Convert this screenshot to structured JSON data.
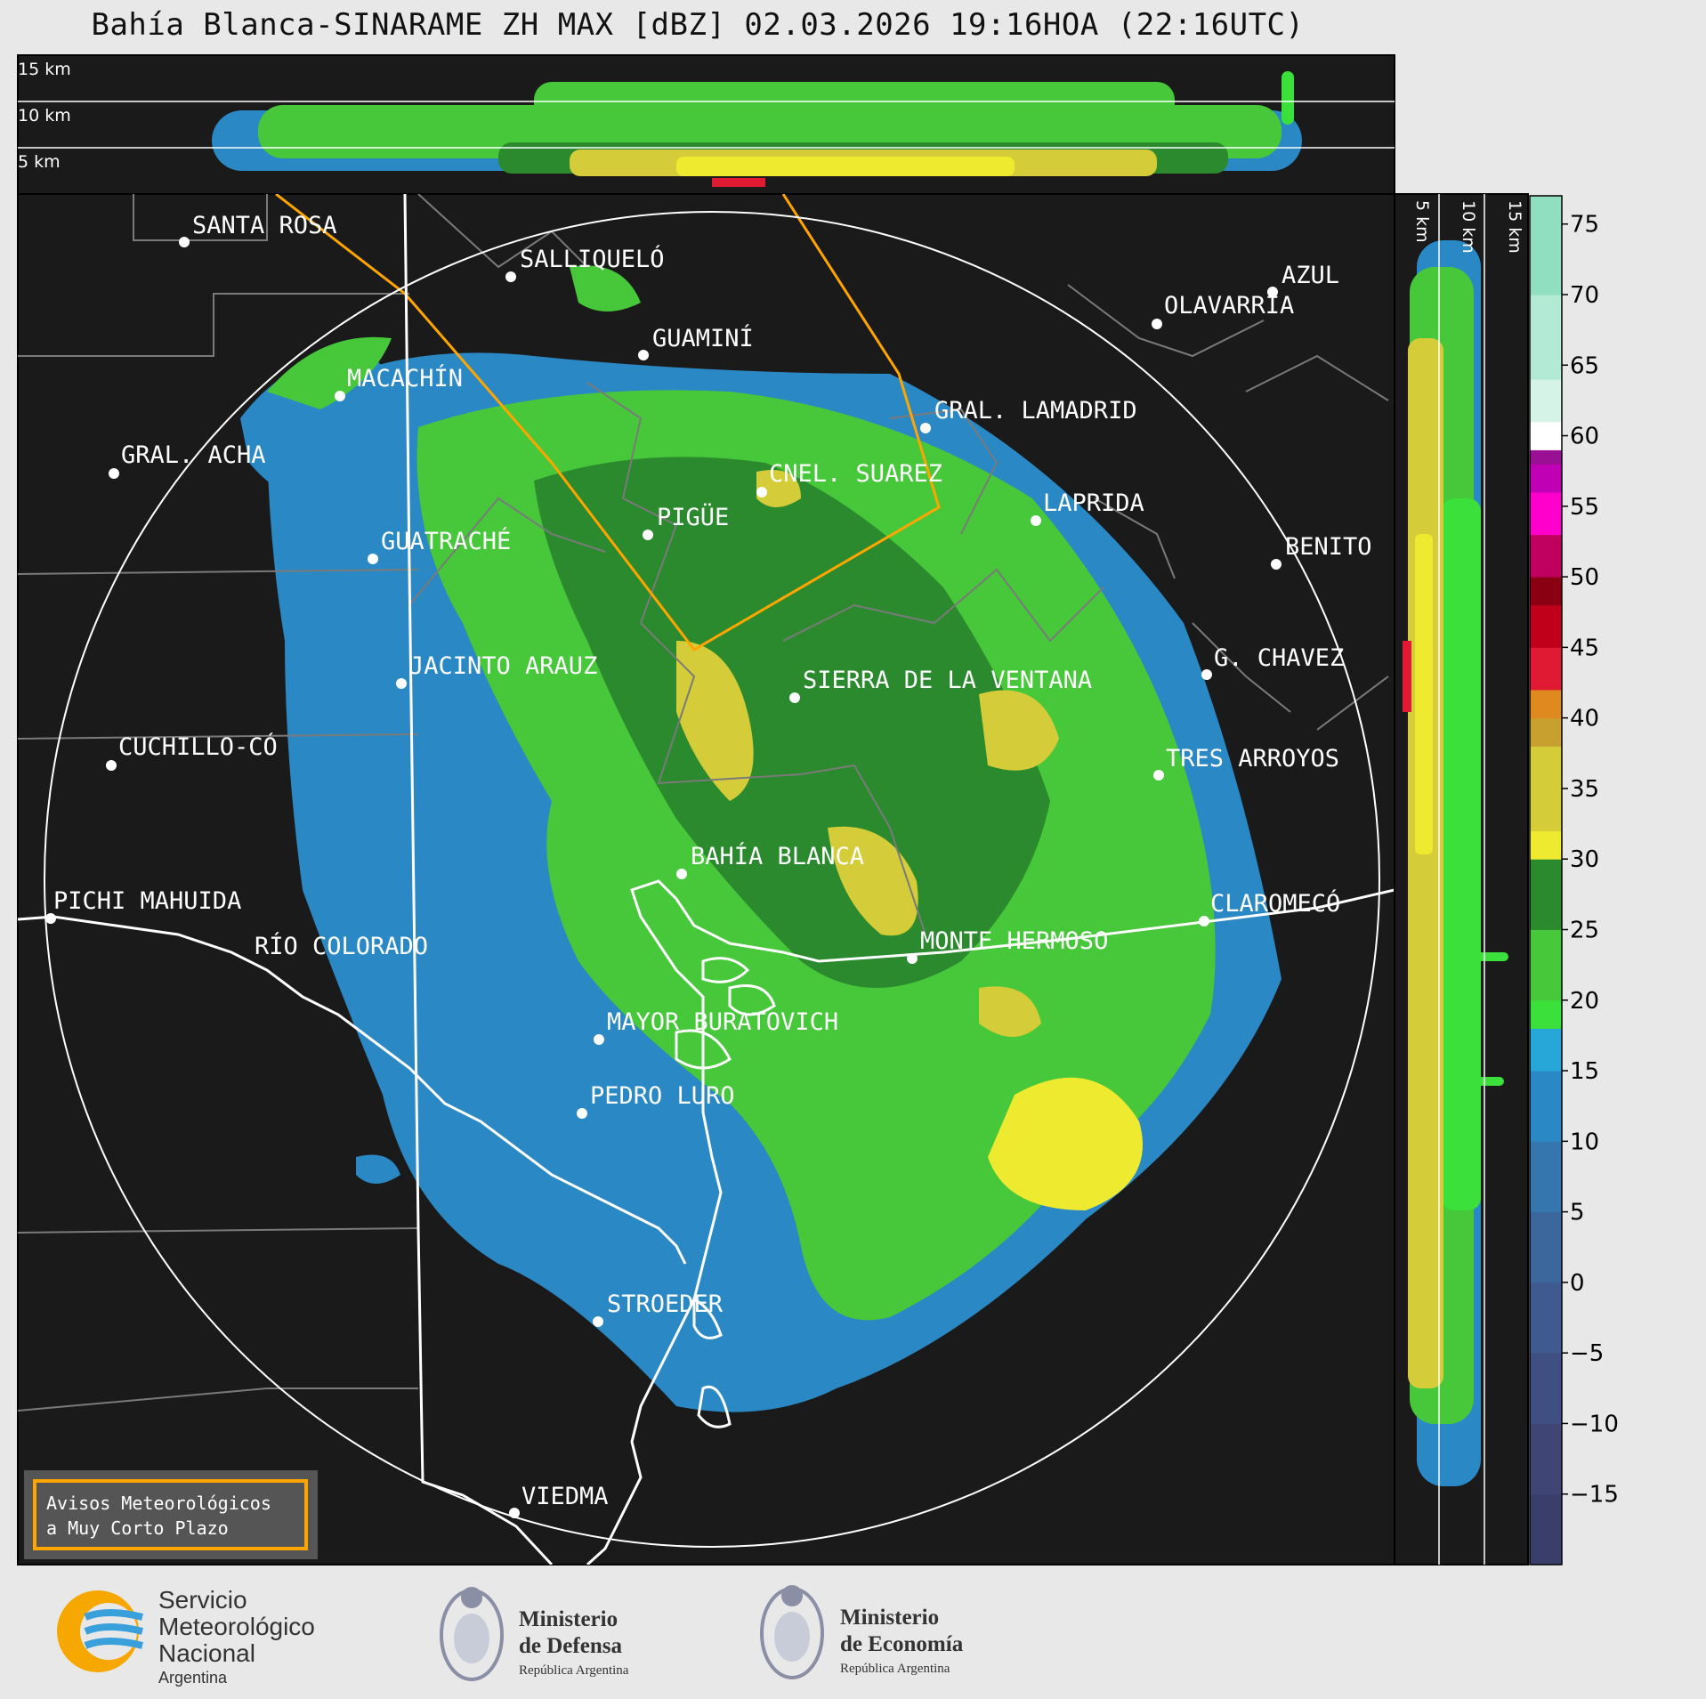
{
  "title": "Bahía Blanca-SINARAME ZH MAX [dBZ] 02.03.2026 19:16HOA (22:16UTC)",
  "top_panel": {
    "height_labels": [
      "15 km",
      "10 km",
      "5 km"
    ]
  },
  "side_panel": {
    "height_labels": [
      "5 km",
      "10 km",
      "15 km"
    ]
  },
  "cities": [
    {
      "name": "SANTA ROSA"
    },
    {
      "name": "SALLIQUELÓ"
    },
    {
      "name": "AZUL"
    },
    {
      "name": "OLAVARRÍA"
    },
    {
      "name": "GUAMINÍ"
    },
    {
      "name": "MACACHÍN"
    },
    {
      "name": "GRAL. LAMADRID"
    },
    {
      "name": "GRAL. ACHA"
    },
    {
      "name": "CNEL. SUAREZ"
    },
    {
      "name": "LAPRIDA"
    },
    {
      "name": "PIGÜE"
    },
    {
      "name": "GUATRACHÉ"
    },
    {
      "name": "BENITO"
    },
    {
      "name": "G. CHAVEZ"
    },
    {
      "name": "JACINTO ARAUZ"
    },
    {
      "name": "SIERRA DE LA VENTANA"
    },
    {
      "name": "CUCHILLO-CÓ"
    },
    {
      "name": "TRES ARROYOS"
    },
    {
      "name": "BAHÍA BLANCA"
    },
    {
      "name": "PICHI MAHUIDA"
    },
    {
      "name": "CLAROMECÓ"
    },
    {
      "name": "RÍO COLORADO"
    },
    {
      "name": "MONTE HERMOSO"
    },
    {
      "name": "MAYOR BURATOVICH"
    },
    {
      "name": "PEDRO LURO"
    },
    {
      "name": "STROEDER"
    },
    {
      "name": "VIEDMA"
    }
  ],
  "colorbar": {
    "unit": "dBZ",
    "ticks": [
      "75",
      "70",
      "65",
      "60",
      "55",
      "50",
      "45",
      "40",
      "35",
      "30",
      "25",
      "20",
      "15",
      "10",
      "5",
      "0",
      "−5",
      "−10",
      "−15"
    ],
    "bands": [
      {
        "from": -20,
        "to": -15,
        "color": "#3a3e6a"
      },
      {
        "from": -15,
        "to": -10,
        "color": "#3f4675"
      },
      {
        "from": -10,
        "to": -5,
        "color": "#3f4f82"
      },
      {
        "from": -5,
        "to": 0,
        "color": "#3e5a8f"
      },
      {
        "from": 0,
        "to": 5,
        "color": "#3b679c"
      },
      {
        "from": 5,
        "to": 10,
        "color": "#3476ad"
      },
      {
        "from": 10,
        "to": 15,
        "color": "#2a88c4"
      },
      {
        "from": 15,
        "to": 18,
        "color": "#27a6d8"
      },
      {
        "from": 18,
        "to": 20,
        "color": "#3be03b"
      },
      {
        "from": 20,
        "to": 25,
        "color": "#46c83a"
      },
      {
        "from": 25,
        "to": 30,
        "color": "#2b8a2e"
      },
      {
        "from": 30,
        "to": 32,
        "color": "#eeea30"
      },
      {
        "from": 32,
        "to": 38,
        "color": "#d4cc38"
      },
      {
        "from": 38,
        "to": 40,
        "color": "#c8a030"
      },
      {
        "from": 40,
        "to": 42,
        "color": "#de8a1e"
      },
      {
        "from": 42,
        "to": 45,
        "color": "#e01a32"
      },
      {
        "from": 45,
        "to": 48,
        "color": "#c0001a"
      },
      {
        "from": 48,
        "to": 50,
        "color": "#8a0012"
      },
      {
        "from": 50,
        "to": 53,
        "color": "#c0005e"
      },
      {
        "from": 53,
        "to": 56,
        "color": "#ff00cc"
      },
      {
        "from": 56,
        "to": 58,
        "color": "#c000b4"
      },
      {
        "from": 58,
        "to": 59,
        "color": "#9a1095"
      },
      {
        "from": 59,
        "to": 61,
        "color": "#ffffff"
      },
      {
        "from": 61,
        "to": 64,
        "color": "#d6f3e8"
      },
      {
        "from": 64,
        "to": 70,
        "color": "#b2ead6"
      },
      {
        "from": 70,
        "to": 77,
        "color": "#8fdfc0"
      }
    ]
  },
  "aviso": {
    "line1": "Avisos Meteorológicos",
    "line2": "a Muy Corto Plazo"
  },
  "logos": {
    "smn": {
      "line1": "Servicio",
      "line2": "Meteorológico",
      "line3": "Nacional",
      "line4": "Argentina"
    },
    "defensa": {
      "line1": "Ministerio",
      "line2": "de Defensa",
      "line3": "República Argentina"
    },
    "economia": {
      "line1": "Ministerio",
      "line2": "de Economía",
      "line3": "República Argentina"
    }
  },
  "colors": {
    "radar_background": "#1a1a1a",
    "range_ring": "#ffffff",
    "region_outline": "#ffa500",
    "coast": "#ffffff",
    "borders": "#7a7a7a"
  }
}
